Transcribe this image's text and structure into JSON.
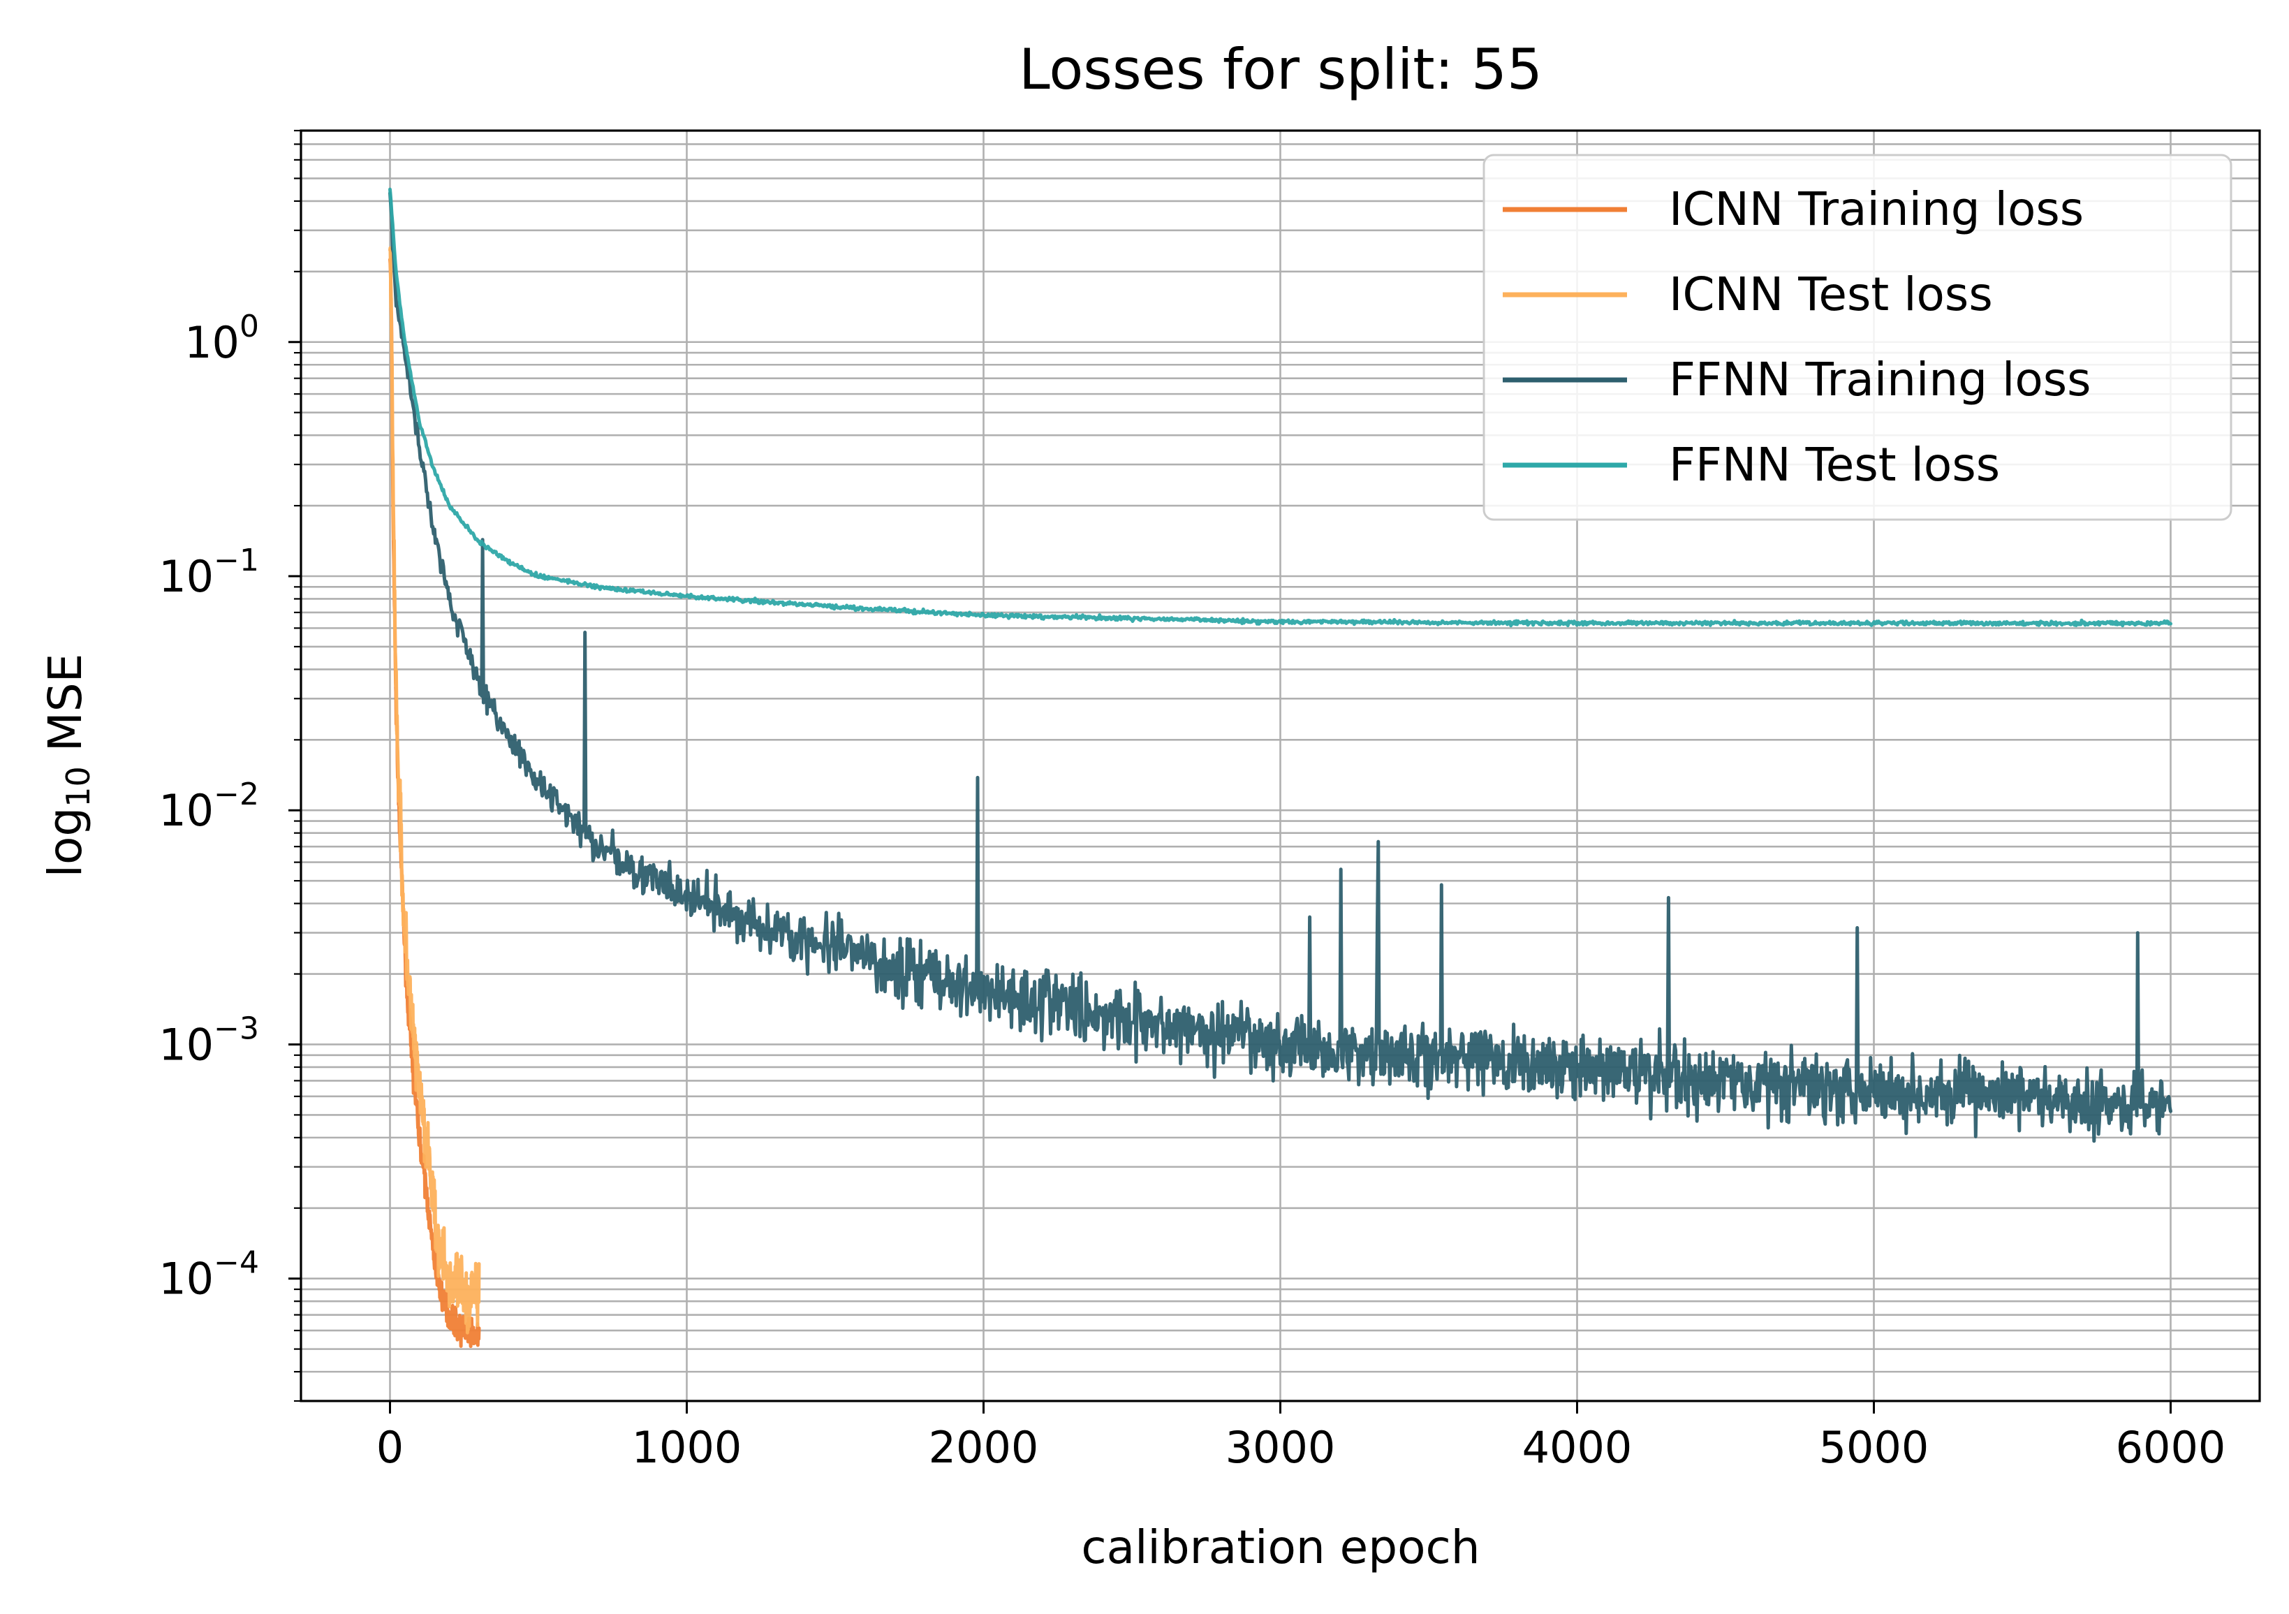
{
  "chart_data": {
    "type": "line",
    "title": "Losses for split: 55",
    "xlabel": "calibration epoch",
    "ylabel_prefix": "log",
    "ylabel_sub": "10",
    "ylabel_suffix": " MSE",
    "y_scale": "log",
    "xlim": [
      -300,
      6300
    ],
    "ylim": [
      3e-05,
      8
    ],
    "x_ticks": [
      {
        "value": 0,
        "label": "0"
      },
      {
        "value": 1000,
        "label": "1000"
      },
      {
        "value": 2000,
        "label": "2000"
      },
      {
        "value": 3000,
        "label": "3000"
      },
      {
        "value": 4000,
        "label": "4000"
      },
      {
        "value": 5000,
        "label": "5000"
      },
      {
        "value": 6000,
        "label": "6000"
      }
    ],
    "y_ticks": [
      {
        "value": 0.0001,
        "base": "10",
        "exp": "−4"
      },
      {
        "value": 0.001,
        "base": "10",
        "exp": "−3"
      },
      {
        "value": 0.01,
        "base": "10",
        "exp": "−2"
      },
      {
        "value": 0.1,
        "base": "10",
        "exp": "−1"
      },
      {
        "value": 1,
        "base": "10",
        "exp": "0"
      }
    ],
    "grid": true,
    "legend_position": "top-right",
    "series": [
      {
        "name": "ICNN Training loss",
        "color": "#f07f35",
        "noise": 0.08,
        "x": [
          0,
          5,
          10,
          20,
          30,
          40,
          50,
          60,
          80,
          100,
          120,
          140,
          160,
          180,
          200,
          220,
          240,
          260,
          280,
          300
        ],
        "y": [
          2.4,
          1.2,
          0.2,
          0.03,
          0.01,
          0.005,
          0.0025,
          0.0015,
          0.0007,
          0.0004,
          0.00025,
          0.00015,
          0.0001,
          8e-05,
          7e-05,
          6.5e-05,
          6e-05,
          6e-05,
          5.8e-05,
          5.5e-05
        ]
      },
      {
        "name": "ICNN Test loss",
        "color": "#fdb15c",
        "noise": 0.18,
        "x": [
          0,
          5,
          10,
          20,
          30,
          40,
          50,
          60,
          80,
          100,
          120,
          140,
          160,
          180,
          200,
          220,
          240,
          260,
          280,
          300
        ],
        "y": [
          2.5,
          1.3,
          0.25,
          0.035,
          0.012,
          0.006,
          0.003,
          0.002,
          0.001,
          0.0006,
          0.0004,
          0.00025,
          0.00015,
          0.00012,
          0.0001,
          9e-05,
          9e-05,
          8e-05,
          9e-05,
          8e-05
        ]
      },
      {
        "name": "FFNN Training loss",
        "color": "#2e5f6e",
        "noise": 0.2,
        "x": [
          0,
          20,
          50,
          100,
          150,
          200,
          300,
          400,
          500,
          700,
          1000,
          1500,
          2000,
          2500,
          3000,
          3500,
          4000,
          4500,
          5000,
          5500,
          6000
        ],
        "y": [
          4.5,
          1.5,
          0.9,
          0.35,
          0.15,
          0.08,
          0.035,
          0.02,
          0.013,
          0.007,
          0.0042,
          0.0025,
          0.0017,
          0.0013,
          0.001,
          0.0009,
          0.0008,
          0.0007,
          0.00065,
          0.0006,
          0.00055
        ]
      },
      {
        "name": "FFNN Test loss",
        "color": "#2ea8a8",
        "noise": 0.012,
        "x": [
          0,
          20,
          50,
          100,
          150,
          200,
          300,
          400,
          500,
          700,
          1000,
          1500,
          2000,
          2500,
          3000,
          4000,
          5000,
          6000
        ],
        "y": [
          4.5,
          2.0,
          1.0,
          0.45,
          0.28,
          0.2,
          0.14,
          0.115,
          0.1,
          0.09,
          0.082,
          0.074,
          0.068,
          0.066,
          0.064,
          0.063,
          0.063,
          0.063
        ]
      }
    ]
  }
}
